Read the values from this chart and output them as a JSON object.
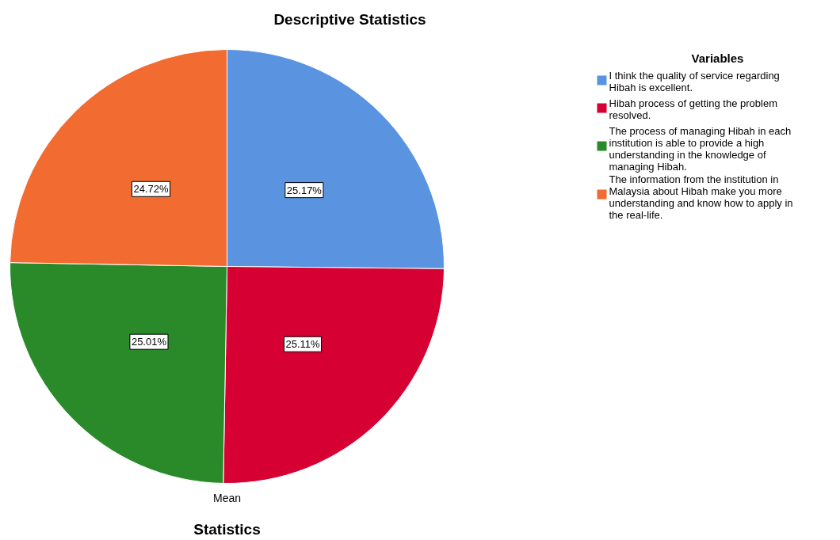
{
  "chart_data": {
    "type": "pie",
    "title": "Descriptive Statistics",
    "xlabel": "Statistics",
    "annotations": [
      "Mean"
    ],
    "legend_title": "Variables",
    "legend": "top right",
    "value_labels": [
      "25.17%",
      "25.11%",
      "25.01%",
      "24.72%"
    ],
    "categories": [
      "I think the quality of service regarding Hibah is excellent.",
      "Hibah process of getting the problem resolved.",
      "The process of managing Hibah in each institution is able to provide a high understanding in the knowledge of managing Hibah.",
      "The information from the institution in Malaysia about Hibah make you more understanding and know how to apply in the real-life."
    ],
    "values": [
      25.17,
      25.11,
      25.01,
      24.72
    ],
    "colors": [
      "#5a94e0",
      "#d60033",
      "#2a8a2a",
      "#f26b30"
    ]
  }
}
